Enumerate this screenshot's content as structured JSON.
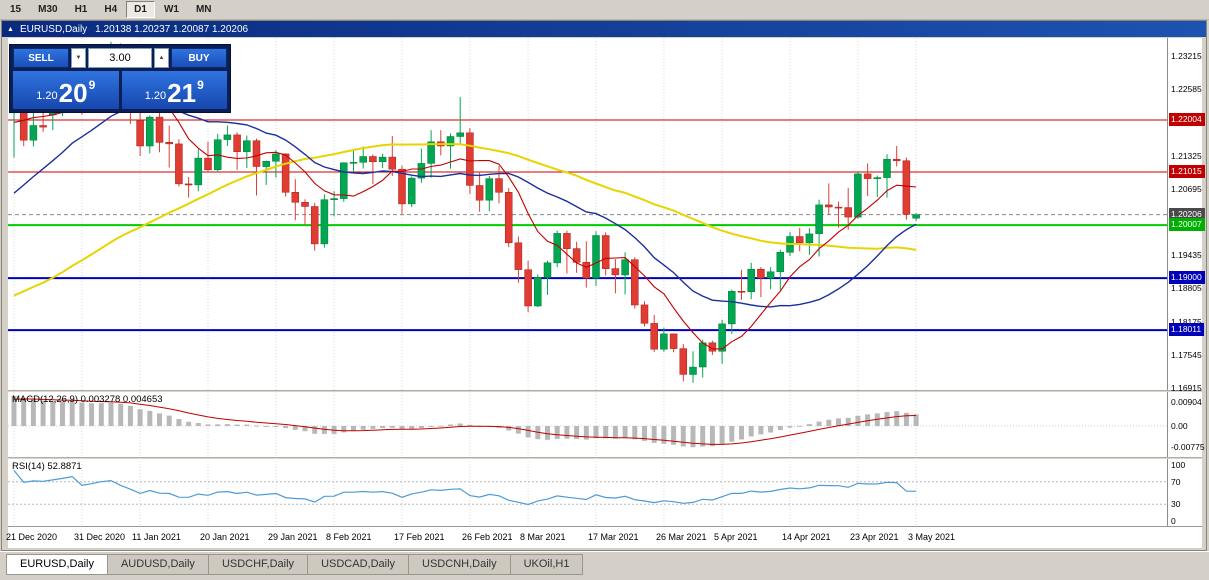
{
  "toolbar": {
    "timeframes": [
      "15",
      "M30",
      "H1",
      "H4",
      "D1",
      "W1",
      "MN"
    ],
    "active": "D1"
  },
  "chart_window": {
    "title_symbol": "EURUSD,Daily",
    "title_ohlc": "1.20138 1.20237 1.20087 1.20206"
  },
  "icons": {
    "collapse": "▲",
    "spin_down": "▼",
    "spin_up": "▲"
  },
  "trade_panel": {
    "sell_label": "SELL",
    "buy_label": "BUY",
    "volume": "3.00",
    "sell_price": {
      "prefix": "1.20",
      "big": "20",
      "sup": "9"
    },
    "buy_price": {
      "prefix": "1.20",
      "big": "21",
      "sup": "9"
    }
  },
  "indicators": {
    "macd_label": "MACD(12,26,9) 0.003278 0.004653",
    "rsi_label": "RSI(14) 52.8871"
  },
  "chart_data": {
    "type": "candlestick",
    "symbol": "EURUSD",
    "timeframe": "Daily",
    "current_ohlc": {
      "open": 1.20138,
      "high": 1.20237,
      "low": 1.20087,
      "close": 1.20206
    },
    "y_ticks": [
      "1.23215",
      "1.22585",
      "1.21325",
      "1.20695",
      "1.19435",
      "1.18805",
      "1.18175",
      "1.17545",
      "1.16915"
    ],
    "price_tags": [
      {
        "text": "1.22004",
        "color": "#C00000"
      },
      {
        "text": "1.21015",
        "color": "#C00000"
      },
      {
        "text": "1.20206",
        "color": "#4A4A4A"
      },
      {
        "text": "1.20007",
        "color": "#00B000"
      },
      {
        "text": "1.19000",
        "color": "#0000B8"
      },
      {
        "text": "1.18011",
        "color": "#0000B8"
      }
    ],
    "hlines": [
      {
        "price": 1.22004,
        "color": "#CC0000",
        "width": 1
      },
      {
        "price": 1.21015,
        "color": "#CC0000",
        "width": 1
      },
      {
        "price": 1.20007,
        "color": "#00CC00",
        "width": 2
      },
      {
        "price": 1.19,
        "color": "#0000C0",
        "width": 2
      },
      {
        "price": 1.18011,
        "color": "#0000C0",
        "width": 2
      }
    ],
    "bid_line": {
      "price": 1.20206
    },
    "x_ticks": [
      {
        "label": "21 Dec 2020",
        "i": 0
      },
      {
        "label": "31 Dec 2020",
        "i": 7
      },
      {
        "label": "11 Jan 2021",
        "i": 13
      },
      {
        "label": "20 Jan 2021",
        "i": 20
      },
      {
        "label": "29 Jan 2021",
        "i": 27
      },
      {
        "label": "8 Feb 2021",
        "i": 33
      },
      {
        "label": "17 Feb 2021",
        "i": 40
      },
      {
        "label": "26 Feb 2021",
        "i": 47
      },
      {
        "label": "8 Mar 2021",
        "i": 53
      },
      {
        "label": "17 Mar 2021",
        "i": 60
      },
      {
        "label": "26 Mar 2021",
        "i": 67
      },
      {
        "label": "5 Apr 2021",
        "i": 73
      },
      {
        "label": "14 Apr 2021",
        "i": 80
      },
      {
        "label": "23 Apr 2021",
        "i": 87
      },
      {
        "label": "3 May 2021",
        "i": 93
      }
    ],
    "candles": [
      [
        1.222,
        1.2253,
        1.2129,
        1.2242
      ],
      [
        1.2242,
        1.2251,
        1.2151,
        1.2162
      ],
      [
        1.2162,
        1.2222,
        1.215,
        1.219
      ],
      [
        1.219,
        1.2222,
        1.2178,
        1.2187
      ],
      [
        1.221,
        1.225,
        1.2181,
        1.2214
      ],
      [
        1.2214,
        1.2275,
        1.2208,
        1.2248
      ],
      [
        1.2248,
        1.2311,
        1.2244,
        1.2299
      ],
      [
        1.2299,
        1.2317,
        1.221,
        1.2216
      ],
      [
        1.2239,
        1.2312,
        1.2228,
        1.2249
      ],
      [
        1.2249,
        1.2304,
        1.2247,
        1.2296
      ],
      [
        1.2296,
        1.2349,
        1.2265,
        1.2327
      ],
      [
        1.2327,
        1.2346,
        1.2244,
        1.2271
      ],
      [
        1.2271,
        1.2286,
        1.2193,
        1.222
      ],
      [
        1.22,
        1.2224,
        1.2132,
        1.2151
      ],
      [
        1.2151,
        1.2209,
        1.2137,
        1.2206
      ],
      [
        1.2206,
        1.2224,
        1.2139,
        1.2158
      ],
      [
        1.2158,
        1.219,
        1.211,
        1.2155
      ],
      [
        1.2155,
        1.2164,
        1.2074,
        1.2079
      ],
      [
        1.2079,
        1.2092,
        1.2053,
        1.2077
      ],
      [
        1.2077,
        1.2145,
        1.2065,
        1.2128
      ],
      [
        1.2128,
        1.2159,
        1.2103,
        1.2106
      ],
      [
        1.2106,
        1.2174,
        1.2101,
        1.2163
      ],
      [
        1.2163,
        1.219,
        1.2151,
        1.2172
      ],
      [
        1.2172,
        1.2177,
        1.2106,
        1.214
      ],
      [
        1.214,
        1.2171,
        1.2109,
        1.2161
      ],
      [
        1.2161,
        1.2165,
        1.2057,
        1.2112
      ],
      [
        1.2112,
        1.2123,
        1.2077,
        1.2122
      ],
      [
        1.2122,
        1.2143,
        1.2091,
        1.2136
      ],
      [
        1.2136,
        1.2137,
        1.2055,
        1.2063
      ],
      [
        1.2063,
        1.2088,
        1.201,
        1.2044
      ],
      [
        1.2044,
        1.205,
        1.2001,
        1.2036
      ],
      [
        1.2036,
        1.2043,
        1.1952,
        1.1965
      ],
      [
        1.1965,
        1.2059,
        1.1958,
        1.2049
      ],
      [
        1.2049,
        1.2065,
        1.2017,
        1.2051
      ],
      [
        1.2051,
        1.212,
        1.2045,
        1.2119
      ],
      [
        1.2119,
        1.2145,
        1.2101,
        1.212
      ],
      [
        1.212,
        1.215,
        1.2108,
        1.2131
      ],
      [
        1.2131,
        1.2135,
        1.2079,
        1.2121
      ],
      [
        1.2121,
        1.2136,
        1.2109,
        1.213
      ],
      [
        1.213,
        1.217,
        1.2094,
        1.2107
      ],
      [
        1.2107,
        1.2114,
        1.2022,
        1.2041
      ],
      [
        1.2041,
        1.2093,
        1.2035,
        1.209
      ],
      [
        1.209,
        1.2146,
        1.2081,
        1.2118
      ],
      [
        1.2118,
        1.2181,
        1.2091,
        1.2159
      ],
      [
        1.2159,
        1.2181,
        1.2133,
        1.2151
      ],
      [
        1.2151,
        1.2175,
        1.2108,
        1.2169
      ],
      [
        1.2169,
        1.2244,
        1.2154,
        1.2176
      ],
      [
        1.2176,
        1.2185,
        1.206,
        1.2076
      ],
      [
        1.2076,
        1.2102,
        1.2026,
        1.2048
      ],
      [
        1.2048,
        1.2094,
        1.2027,
        1.2089
      ],
      [
        1.2089,
        1.2113,
        1.2042,
        1.2063
      ],
      [
        1.2063,
        1.2071,
        1.1959,
        1.1967
      ],
      [
        1.1967,
        1.1979,
        1.1891,
        1.1916
      ],
      [
        1.1916,
        1.1933,
        1.1835,
        1.1847
      ],
      [
        1.1847,
        1.1907,
        1.1845,
        1.1901
      ],
      [
        1.1901,
        1.1933,
        1.1868,
        1.1929
      ],
      [
        1.1929,
        1.199,
        1.1921,
        1.1985
      ],
      [
        1.1985,
        1.199,
        1.1909,
        1.1956
      ],
      [
        1.1956,
        1.1969,
        1.191,
        1.193
      ],
      [
        1.193,
        1.197,
        1.1882,
        1.19
      ],
      [
        1.19,
        1.1989,
        1.1885,
        1.1981
      ],
      [
        1.1981,
        1.1987,
        1.1905,
        1.1918
      ],
      [
        1.1918,
        1.1936,
        1.1871,
        1.1906
      ],
      [
        1.1906,
        1.1949,
        1.1869,
        1.1935
      ],
      [
        1.1935,
        1.194,
        1.1842,
        1.1849
      ],
      [
        1.1849,
        1.1856,
        1.1808,
        1.1814
      ],
      [
        1.1814,
        1.183,
        1.176,
        1.1765
      ],
      [
        1.1765,
        1.1806,
        1.176,
        1.1794
      ],
      [
        1.1794,
        1.1795,
        1.1759,
        1.1766
      ],
      [
        1.1766,
        1.1775,
        1.1704,
        1.1717
      ],
      [
        1.1717,
        1.1761,
        1.1701,
        1.1731
      ],
      [
        1.1731,
        1.1783,
        1.1711,
        1.1777
      ],
      [
        1.1777,
        1.1781,
        1.1754,
        1.1761
      ],
      [
        1.1761,
        1.1821,
        1.1737,
        1.1813
      ],
      [
        1.1813,
        1.1878,
        1.1794,
        1.1875
      ],
      [
        1.1875,
        1.1916,
        1.1859,
        1.1874
      ],
      [
        1.1874,
        1.1929,
        1.186,
        1.1917
      ],
      [
        1.1917,
        1.1921,
        1.1864,
        1.19
      ],
      [
        1.19,
        1.1921,
        1.1879,
        1.1912
      ],
      [
        1.1912,
        1.1954,
        1.1877,
        1.1949
      ],
      [
        1.1949,
        1.1988,
        1.1942,
        1.1979
      ],
      [
        1.1979,
        1.1995,
        1.1951,
        1.1967
      ],
      [
        1.1967,
        1.1995,
        1.1944,
        1.1984
      ],
      [
        1.1984,
        1.2049,
        1.1941,
        1.2039
      ],
      [
        1.2039,
        1.208,
        1.2021,
        1.2035
      ],
      [
        1.2035,
        1.2045,
        1.1996,
        1.2034
      ],
      [
        1.2034,
        1.2071,
        1.1992,
        1.2016
      ],
      [
        1.2016,
        1.2101,
        1.2013,
        1.2098
      ],
      [
        1.2098,
        1.2118,
        1.2056,
        1.2089
      ],
      [
        1.2089,
        1.2095,
        1.2054,
        1.2091
      ],
      [
        1.2091,
        1.2135,
        1.2053,
        1.2126
      ],
      [
        1.2126,
        1.2151,
        1.2112,
        1.2123
      ],
      [
        1.2123,
        1.2129,
        1.2011,
        1.2021
      ],
      [
        1.20138,
        1.20237,
        1.20087,
        1.20206
      ]
    ],
    "prehistory_closes": [
      1.174,
      1.1755,
      1.177,
      1.1785,
      1.1745,
      1.172,
      1.17,
      1.168,
      1.1695,
      1.1715,
      1.173,
      1.1748,
      1.176,
      1.174,
      1.1725,
      1.171,
      1.169,
      1.1665,
      1.164,
      1.166,
      1.168,
      1.17,
      1.172,
      1.1745,
      1.177,
      1.18,
      1.183,
      1.181,
      1.179,
      1.1805,
      1.1825,
      1.185,
      1.187,
      1.189,
      1.191,
      1.193,
      1.195,
      1.1975,
      1.2,
      1.203,
      1.206,
      1.2085,
      1.211,
      1.213,
      1.215,
      1.217,
      1.219,
      1.221,
      1.223,
      1.2245
    ],
    "moving_averages": [
      {
        "period": 50,
        "color": "#E8D400",
        "width": 2
      },
      {
        "period": 20,
        "color": "#1B2F9E",
        "width": 1.4
      },
      {
        "period": 8,
        "color": "#C00000",
        "width": 1.1
      }
    ],
    "macd": {
      "fast": 12,
      "slow": 26,
      "signal": 9,
      "axis_labels": [
        {
          "text": "0.00904",
          "value": 0.00904
        },
        {
          "text": "0.00",
          "value": 0
        },
        {
          "text": "-0.00775",
          "value": -0.00775
        }
      ]
    },
    "rsi": {
      "period": 14,
      "levels": [
        70,
        30
      ],
      "axis_labels": [
        {
          "text": "100",
          "value": 100
        },
        {
          "text": "70",
          "value": 70
        },
        {
          "text": "30",
          "value": 30
        },
        {
          "text": "0",
          "value": 0
        }
      ]
    },
    "colors": {
      "candle_up": "#00A651",
      "candle_up_border": "#007A35",
      "candle_down": "#E03C32",
      "candle_down_border": "#A02020",
      "macd_histogram": "#B8B8B8",
      "macd_signal": "#C00000",
      "rsi_line": "#4C9BD6",
      "grid": "#D8D8D8"
    }
  },
  "tabs": [
    {
      "label": "EURUSD,Daily",
      "active": true
    },
    {
      "label": "AUDUSD,Daily",
      "active": false
    },
    {
      "label": "USDCHF,Daily",
      "active": false
    },
    {
      "label": "USDCAD,Daily",
      "active": false
    },
    {
      "label": "USDCNH,Daily",
      "active": false
    },
    {
      "label": "UKOil,H1",
      "active": false
    }
  ]
}
